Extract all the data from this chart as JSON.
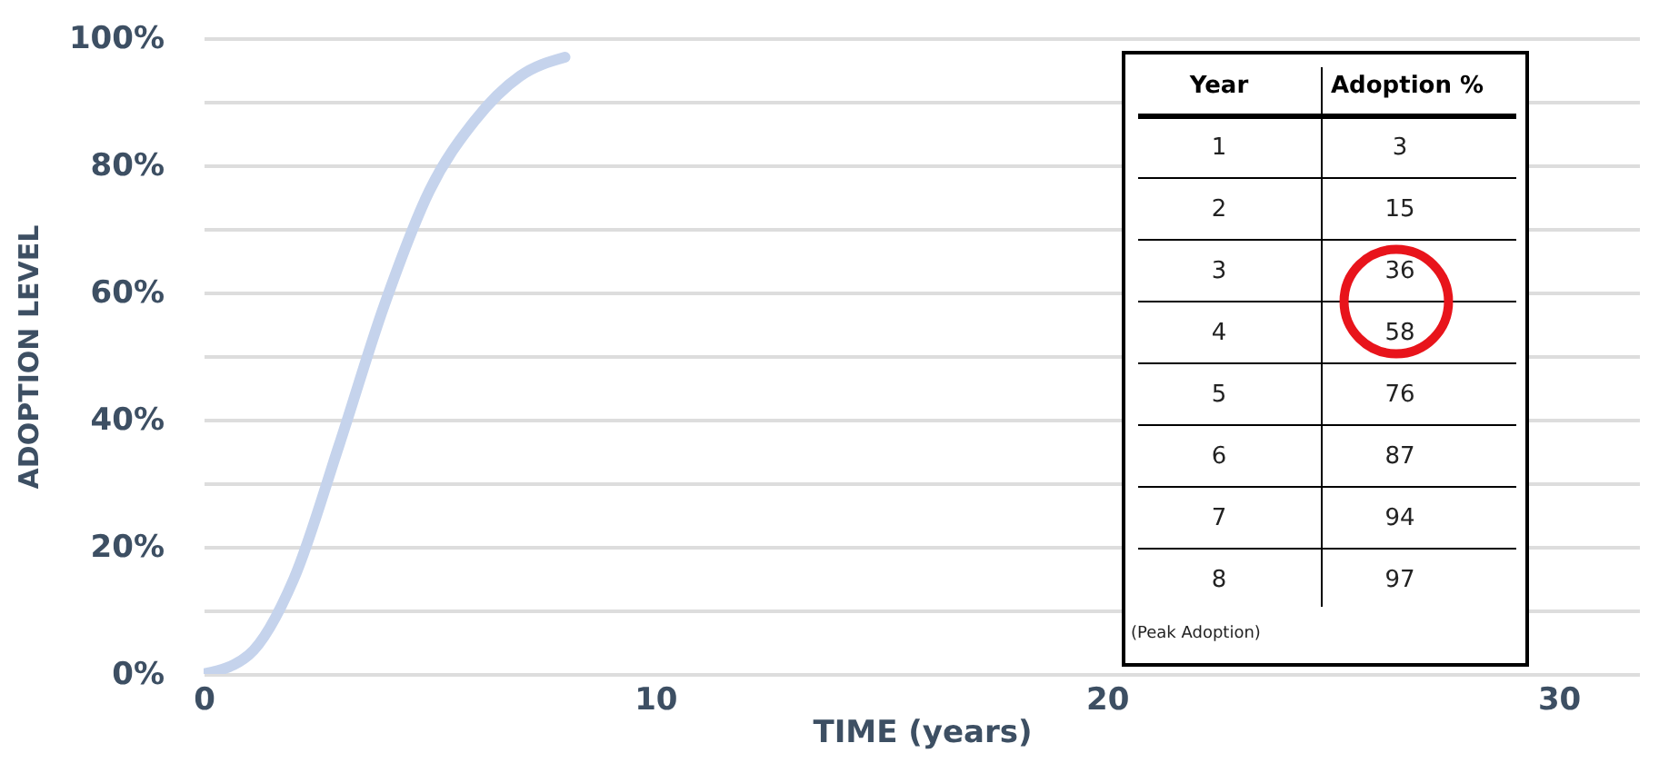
{
  "chart_data": {
    "type": "line",
    "xlabel": "TIME (years)",
    "ylabel": "ADOPTION LEVEL",
    "series": [
      {
        "color": "#c5d3ec",
        "x": [
          0,
          1,
          2,
          3,
          4,
          5,
          6,
          7,
          8
        ],
        "values": [
          0,
          3,
          15,
          36,
          58,
          76,
          87,
          94,
          97
        ]
      }
    ],
    "xlim": [
      0,
      31.8
    ],
    "xticks": [
      0,
      10,
      20,
      30
    ],
    "ylim": [
      0,
      100
    ],
    "yticks": [
      {
        "value": 0,
        "label": "0%"
      },
      {
        "value": 10,
        "label": null
      },
      {
        "value": 20,
        "label": "20%"
      },
      {
        "value": 30,
        "label": null
      },
      {
        "value": 40,
        "label": "40%"
      },
      {
        "value": 50,
        "label": null
      },
      {
        "value": 60,
        "label": "60%"
      },
      {
        "value": 70,
        "label": null
      },
      {
        "value": 80,
        "label": "80%"
      },
      {
        "value": 90,
        "label": null
      },
      {
        "value": 100,
        "label": "100%"
      }
    ],
    "grid": "y",
    "line_style": "solid",
    "annotations": [
      "Year",
      "Adoption %",
      "1",
      "3",
      "2",
      "15",
      "3",
      "36",
      "4",
      "58",
      "5",
      "76",
      "6",
      "87",
      "7",
      "94",
      "8",
      "97",
      "(Peak Adoption)"
    ]
  }
}
